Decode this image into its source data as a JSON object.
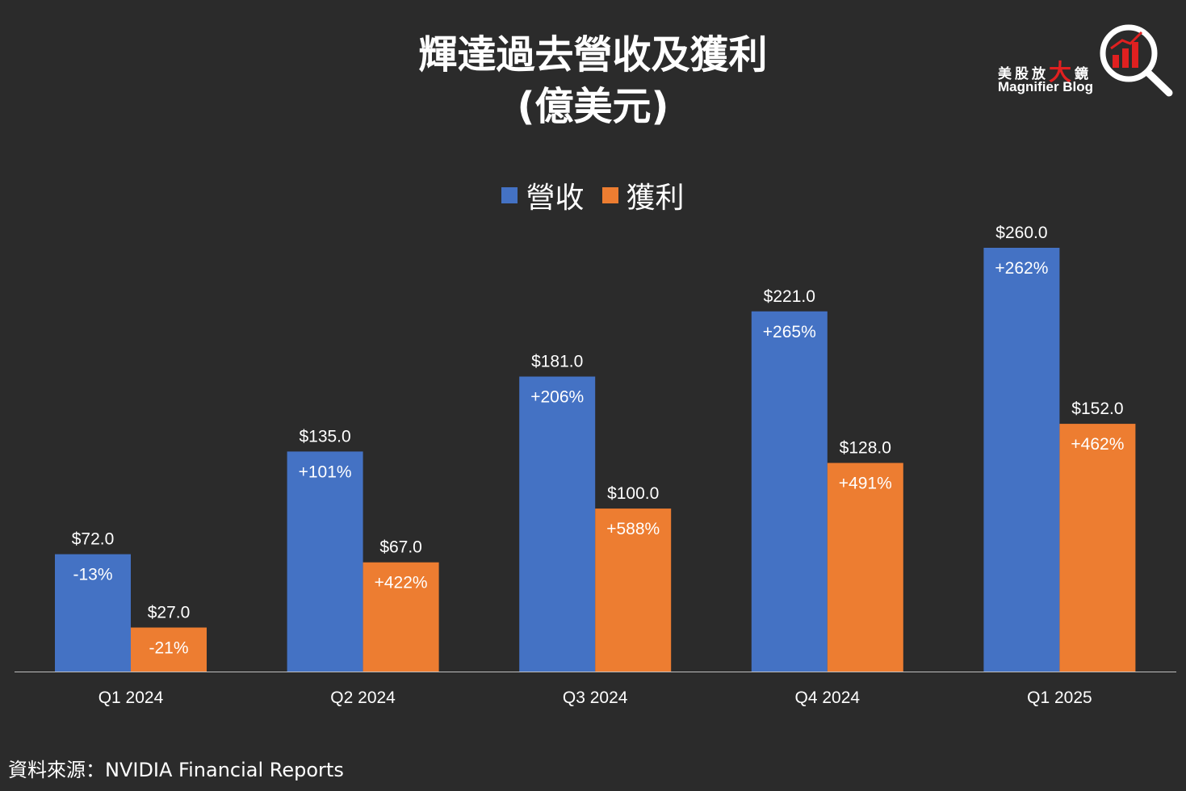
{
  "header": {
    "title_line1": "輝達過去營收及獲利",
    "title_line2": "(億美元)"
  },
  "logo": {
    "cn_part1": "美股放",
    "cn_big": "大",
    "cn_part2": "鏡",
    "en": "Magnifier Blog",
    "icon": "magnifier-bar-chart-icon"
  },
  "source": "資料來源：NVIDIA Financial Reports",
  "colors": {
    "background": "#2b2b2b",
    "revenue": "#4472c4",
    "profit": "#ed7d31",
    "axis": "#bfbfbf",
    "logo_red": "#e02020"
  },
  "chart_data": {
    "type": "bar",
    "title": "輝達過去營收及獲利 (億美元)",
    "categories": [
      "Q1 2024",
      "Q2 2024",
      "Q3 2024",
      "Q4 2024",
      "Q1 2025"
    ],
    "series": [
      {
        "name": "營收",
        "values": [
          72,
          135,
          181,
          221,
          260
        ],
        "value_labels": [
          "$72.0",
          "$135.0",
          "$181.0",
          "$221.0",
          "$260.0"
        ],
        "growth_labels": [
          "-13%",
          "+101%",
          "+206%",
          "+265%",
          "+262%"
        ]
      },
      {
        "name": "獲利",
        "values": [
          27,
          67,
          100,
          128,
          152
        ],
        "value_labels": [
          "$27.0",
          "$67.0",
          "$100.0",
          "$128.0",
          "$152.0"
        ],
        "growth_labels": [
          "-21%",
          "+422%",
          "+588%",
          "+491%",
          "+462%"
        ]
      }
    ],
    "ylim": [
      0,
      260
    ],
    "legend": "top-center",
    "grid": false,
    "xlabel": "",
    "ylabel": ""
  }
}
